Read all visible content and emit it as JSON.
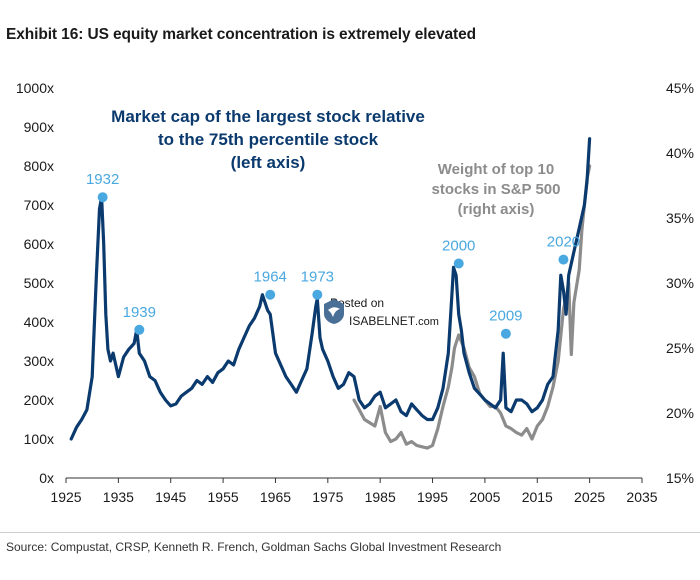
{
  "title": "Exhibit 16: US equity market concentration is extremely elevated",
  "source": "Source: Compustat, CRSP, Kenneth R. French, Goldman Sachs Global Investment Research",
  "watermark": {
    "posted": "Posted on",
    "brand": "ISABELNET",
    "suffix": ".com"
  },
  "colors": {
    "navy": "#0b3a6e",
    "gray": "#8c8c8c",
    "highlight": "#4aa8e0",
    "legend_navy": "#0b3a6e",
    "legend_gray": "#8c8c8c"
  },
  "chart_data": {
    "type": "line",
    "title": "Exhibit 16: US equity market concentration is extremely elevated",
    "x_range": [
      1925,
      2035
    ],
    "x_ticks": [
      1925,
      1935,
      1945,
      1955,
      1965,
      1975,
      1985,
      1995,
      2005,
      2015,
      2025,
      2035
    ],
    "x_tick_labels": [
      "1925",
      "1935",
      "1945",
      "1955",
      "1965",
      "1975",
      "1985",
      "1995",
      "2005",
      "2015",
      "2025",
      "2035"
    ],
    "left_axis": {
      "range": [
        0,
        1000
      ],
      "ticks": [
        0,
        100,
        200,
        300,
        400,
        500,
        600,
        700,
        800,
        900,
        1000
      ],
      "tick_labels": [
        "0x",
        "100x",
        "200x",
        "300x",
        "400x",
        "500x",
        "600x",
        "700x",
        "800x",
        "900x",
        "1000x"
      ]
    },
    "right_axis": {
      "range": [
        15,
        45
      ],
      "ticks": [
        15,
        20,
        25,
        30,
        35,
        40,
        45
      ],
      "tick_labels": [
        "15%",
        "20%",
        "25%",
        "30%",
        "35%",
        "40%",
        "45%"
      ]
    },
    "series": [
      {
        "name": "Market cap of the largest stock relative to the 75th percentile stock",
        "axis": "left",
        "legend_lines": [
          "Market cap of the largest stock relative",
          "to the 75th percentile stock",
          "(left axis)"
        ],
        "x": [
          1926,
          1927,
          1928,
          1929,
          1930,
          1930.8,
          1931.4,
          1931.8,
          1932.2,
          1932.6,
          1933,
          1933.5,
          1934,
          1935,
          1936,
          1937,
          1938,
          1938.5,
          1939,
          1940,
          1941,
          1942,
          1943,
          1944,
          1945,
          1946,
          1947,
          1948,
          1949,
          1950,
          1951,
          1952,
          1953,
          1954,
          1955,
          1956,
          1957,
          1958,
          1959,
          1960,
          1961,
          1962,
          1962.5,
          1963,
          1963.5,
          1964,
          1965,
          1966,
          1967,
          1968,
          1969,
          1970,
          1971,
          1972,
          1972.7,
          1973,
          1973.5,
          1974,
          1975,
          1976,
          1977,
          1978,
          1979,
          1980,
          1981,
          1982,
          1983,
          1984,
          1985,
          1986,
          1987,
          1988,
          1989,
          1990,
          1991,
          1992,
          1993,
          1994,
          1995,
          1996,
          1997,
          1998,
          1998.7,
          1999,
          1999.5,
          2000,
          2000.5,
          2001,
          2002,
          2003,
          2004,
          2005,
          2006,
          2007,
          2008,
          2008.5,
          2009,
          2010,
          2011,
          2012,
          2013,
          2014,
          2015,
          2016,
          2017,
          2018,
          2019,
          2019.5,
          2020,
          2020.5,
          2021,
          2022,
          2023,
          2024,
          2024.5,
          2025
        ],
        "values": [
          100,
          130,
          150,
          175,
          260,
          520,
          690,
          720,
          600,
          420,
          330,
          300,
          320,
          260,
          310,
          330,
          345,
          380,
          320,
          300,
          260,
          250,
          220,
          200,
          185,
          190,
          210,
          220,
          230,
          250,
          240,
          260,
          245,
          270,
          280,
          300,
          290,
          330,
          360,
          390,
          410,
          440,
          470,
          450,
          430,
          420,
          320,
          290,
          260,
          240,
          220,
          250,
          280,
          370,
          440,
          460,
          360,
          330,
          300,
          260,
          230,
          240,
          270,
          260,
          200,
          180,
          190,
          210,
          220,
          180,
          190,
          200,
          170,
          160,
          190,
          175,
          160,
          150,
          150,
          180,
          230,
          320,
          470,
          540,
          520,
          420,
          380,
          320,
          270,
          230,
          215,
          200,
          190,
          180,
          200,
          320,
          180,
          170,
          200,
          200,
          190,
          170,
          180,
          200,
          240,
          260,
          380,
          520,
          480,
          420,
          520,
          580,
          640,
          700,
          760,
          870
        ]
      },
      {
        "name": "Weight of top 10 stocks in S&P 500",
        "axis": "right",
        "legend_lines": [
          "Weight of top 10",
          "stocks in S&P 500",
          "(right axis)"
        ],
        "x": [
          1980,
          1982,
          1984,
          1985,
          1986,
          1987,
          1988,
          1989,
          1990,
          1991,
          1992,
          1993,
          1994,
          1995,
          1996,
          1997,
          1998,
          1998.7,
          1999.2,
          2000,
          2001,
          2002,
          2003,
          2004,
          2005,
          2006,
          2007,
          2008,
          2009,
          2010,
          2011,
          2012,
          2013,
          2014,
          2015,
          2016,
          2017,
          2018,
          2019,
          2020,
          2020.6,
          2021,
          2021.5,
          2022,
          2023,
          2023.5,
          2024,
          2024.5,
          2025
        ],
        "values": [
          21,
          19.5,
          19,
          20.5,
          18.5,
          17.8,
          18,
          18.5,
          17.6,
          17.8,
          17.5,
          17.4,
          17.3,
          17.5,
          18.8,
          20.5,
          22,
          23.5,
          25,
          26,
          25,
          23.5,
          22.8,
          21.5,
          21,
          20.5,
          20.5,
          20,
          19,
          18.8,
          18.5,
          18.3,
          18.8,
          18,
          19,
          19.5,
          20.5,
          22,
          24,
          28,
          29,
          30,
          24.5,
          28.5,
          31,
          34,
          36,
          38,
          39
        ]
      }
    ],
    "annotations": [
      {
        "label": "1932",
        "x": 1932,
        "y": 720
      },
      {
        "label": "1939",
        "x": 1939,
        "y": 380
      },
      {
        "label": "1964",
        "x": 1964,
        "y": 470
      },
      {
        "label": "1973",
        "x": 1973,
        "y": 470
      },
      {
        "label": "2000",
        "x": 2000,
        "y": 550
      },
      {
        "label": "2009",
        "x": 2009,
        "y": 370
      },
      {
        "label": "2020",
        "x": 2020,
        "y": 560
      }
    ]
  }
}
